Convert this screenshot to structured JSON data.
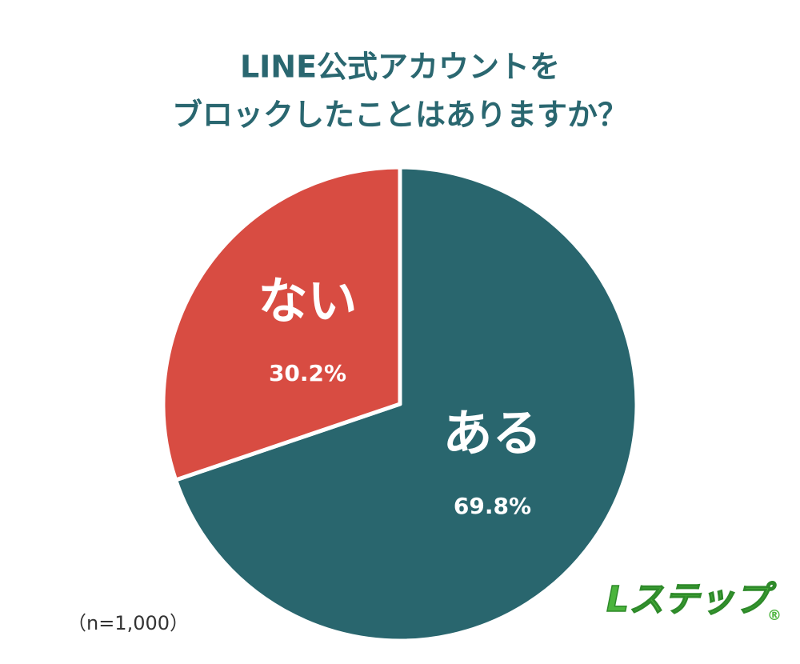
{
  "chart_data": {
    "type": "pie",
    "title": [
      "LINE公式アカウントを",
      "ブロックしたことはありますか？"
    ],
    "categories": [
      "ある",
      "ない"
    ],
    "values": [
      69.8,
      30.2
    ],
    "value_labels": [
      "69.8%",
      "30.2%"
    ],
    "colors": [
      "#29666e",
      "#d84c42"
    ],
    "note": "（n=1,000）",
    "logo": "Lステップ",
    "logo_mark": "®"
  }
}
